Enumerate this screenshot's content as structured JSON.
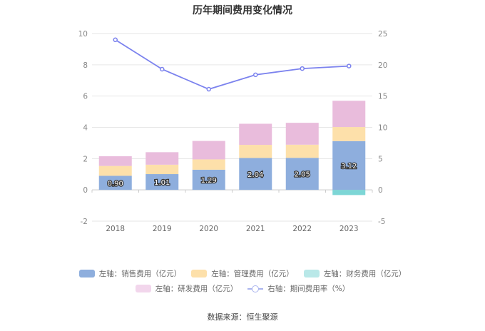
{
  "chart_data": {
    "type": "bar",
    "title": "历年期间费用变化情况",
    "categories": [
      "2018",
      "2019",
      "2020",
      "2021",
      "2022",
      "2023"
    ],
    "left_axis": {
      "ylim": [
        -2,
        10
      ],
      "ticks": [
        "-2",
        "0",
        "2",
        "4",
        "6",
        "8",
        "10"
      ]
    },
    "right_axis": {
      "ylim": [
        -5,
        25
      ],
      "ticks": [
        "-5",
        "0",
        "5",
        "10",
        "15",
        "20",
        "25"
      ]
    },
    "series": [
      {
        "name": "左轴：销售费用（亿元）",
        "type": "stacked-bar",
        "axis": "left",
        "color": "#8eaedd",
        "values": [
          0.9,
          1.01,
          1.29,
          2.04,
          2.05,
          3.12
        ],
        "data_labels": [
          "0.90",
          "1.01",
          "1.29",
          "2.04",
          "2.05",
          "3.12"
        ]
      },
      {
        "name": "左轴：管理费用（亿元）",
        "type": "stacked-bar",
        "axis": "left",
        "color": "#fde0aa",
        "values": [
          0.63,
          0.6,
          0.66,
          0.84,
          0.84,
          0.9
        ]
      },
      {
        "name": "左轴：财务费用（亿元）",
        "type": "stacked-bar",
        "axis": "left",
        "color": "#7dd6d6",
        "values": [
          0.0,
          0.0,
          0.0,
          0.0,
          0.0,
          -0.33
        ]
      },
      {
        "name": "左轴：研发费用（亿元）",
        "type": "stacked-bar",
        "axis": "left",
        "color": "#e9bcdc",
        "values": [
          0.62,
          0.8,
          1.18,
          1.35,
          1.4,
          1.68
        ]
      },
      {
        "name": "右轴：期间费用率（%）",
        "type": "line",
        "axis": "right",
        "color": "#7b82ee",
        "values": [
          24.0,
          19.3,
          16.1,
          18.4,
          19.4,
          19.8
        ]
      }
    ],
    "grid": true,
    "legend_position": "bottom"
  },
  "source": "数据来源：恒生聚源"
}
